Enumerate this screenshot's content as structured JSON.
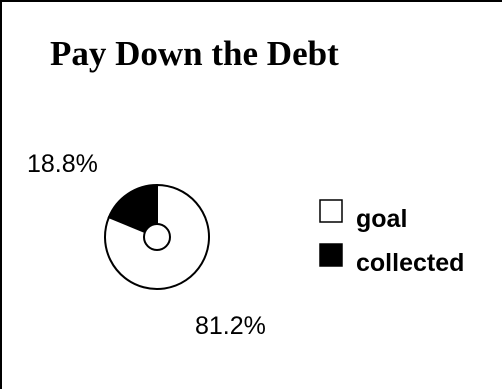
{
  "chart_data": {
    "type": "pie",
    "title": "Pay Down the Debt",
    "categories": [
      "goal",
      "collected"
    ],
    "values": [
      81.2,
      18.8
    ],
    "value_labels": [
      "81.2%",
      "18.8%"
    ],
    "colors": [
      "#ffffff",
      "#000000"
    ],
    "style": "donut",
    "legend": {
      "placement": "right",
      "entries": [
        "goal",
        "collected"
      ]
    }
  }
}
